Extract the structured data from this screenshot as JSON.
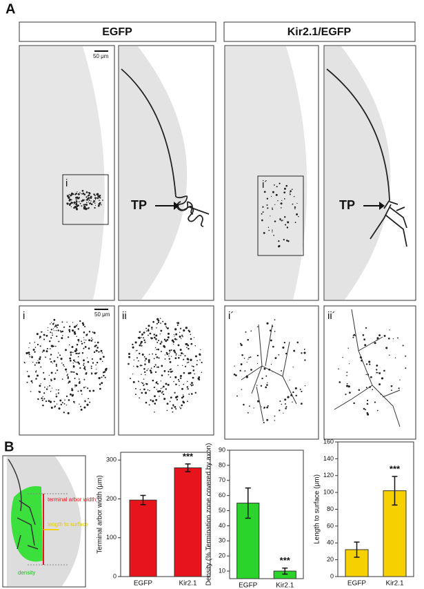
{
  "figure": {
    "panel_labels": [
      "A",
      "B"
    ],
    "headers": [
      "EGFP",
      "Kir2.1/EGFP"
    ],
    "scale_bars": [
      "50 μm",
      "50 μm"
    ],
    "inset_labels": [
      "i",
      "i´"
    ],
    "zoom_labels": [
      "i",
      "ii",
      "i´",
      "ii´"
    ],
    "tp_labels": [
      "TP",
      "TP"
    ],
    "schematic": {
      "width_label": "terminal arbor width",
      "length_label": "length to surface",
      "density_label": "density"
    }
  },
  "chart_data": [
    {
      "type": "bar",
      "ylabel": "Terminal arbor width (μm)",
      "categories": [
        "EGFP",
        "Kir2.1"
      ],
      "values": [
        197,
        280
      ],
      "errors": [
        12,
        10
      ],
      "value_annotations": [
        null,
        "***"
      ],
      "color": "#e8141c",
      "ylim": [
        0,
        320
      ],
      "yticks": [
        0,
        100,
        200,
        300
      ]
    },
    {
      "type": "bar",
      "ylabel": "Density (% Termination zone covered by axon)",
      "categories": [
        "EGFP",
        "Kir2.1"
      ],
      "values": [
        55,
        10
      ],
      "errors": [
        10,
        2
      ],
      "value_annotations": [
        null,
        "***"
      ],
      "color": "#2bd42b",
      "ylim": [
        5,
        90
      ],
      "yticks": [
        10,
        20,
        30,
        40,
        50,
        60,
        70,
        80,
        90
      ]
    },
    {
      "type": "bar",
      "ylabel": "Length to surface (μm)",
      "categories": [
        "EGFP",
        "Kir2.1"
      ],
      "values": [
        32,
        102
      ],
      "errors": [
        9,
        17
      ],
      "value_annotations": [
        null,
        "***"
      ],
      "color": "#f7d000",
      "ylim": [
        0,
        160
      ],
      "yticks": [
        0,
        20,
        40,
        60,
        80,
        100,
        120,
        140,
        160
      ]
    }
  ]
}
